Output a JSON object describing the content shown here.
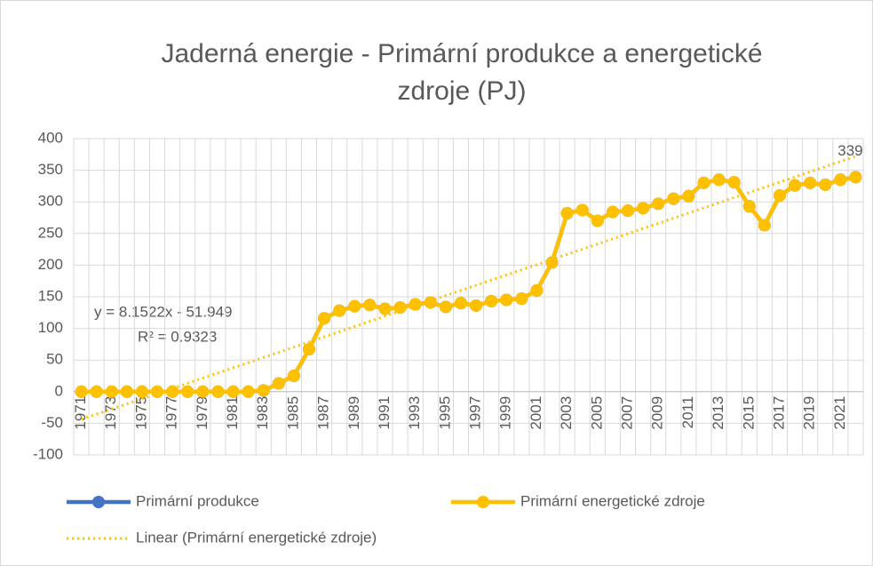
{
  "chart_data": {
    "type": "line",
    "title": [
      "Jaderná energie - Primární produkce a energetické",
      "zdroje (PJ)"
    ],
    "categories": [
      "1971",
      null,
      "1973",
      null,
      "1975",
      null,
      "1977",
      null,
      "1979",
      null,
      "1981",
      null,
      "1983",
      null,
      "1985",
      null,
      "1987",
      null,
      "1989",
      null,
      "1991",
      null,
      "1993",
      null,
      "1995",
      null,
      "1997",
      null,
      "1999",
      null,
      "2001",
      null,
      "2003",
      null,
      "2005",
      null,
      "2007",
      null,
      "2009",
      null,
      "2011",
      null,
      "2013",
      null,
      "2015",
      null,
      "2017",
      null,
      "2019",
      null,
      "2021",
      null
    ],
    "series": [
      {
        "name": "Primární produkce",
        "color": "#4472C4",
        "values": [
          0,
          0,
          0,
          0,
          0,
          0,
          0,
          0,
          0,
          0,
          0,
          0,
          2,
          13,
          25,
          67,
          116,
          128,
          135,
          137,
          131,
          133,
          138,
          141,
          134,
          140,
          136,
          143,
          145,
          147,
          160,
          204,
          282,
          287,
          270,
          284,
          286,
          290,
          297,
          305,
          309,
          330,
          335,
          331,
          293,
          263,
          310,
          326,
          330,
          327,
          335,
          339
        ]
      },
      {
        "name": "Primární energetické zdroje",
        "color": "#FFC000",
        "values": [
          0,
          0,
          0,
          0,
          0,
          0,
          0,
          0,
          0,
          0,
          0,
          0,
          2,
          13,
          25,
          67,
          116,
          128,
          135,
          137,
          131,
          133,
          138,
          141,
          134,
          140,
          136,
          143,
          145,
          147,
          160,
          204,
          282,
          287,
          270,
          284,
          286,
          290,
          297,
          305,
          309,
          330,
          335,
          331,
          293,
          263,
          310,
          326,
          330,
          327,
          335,
          339
        ]
      }
    ],
    "trendline": {
      "name": "Linear (Primární energetické zdroje)",
      "color": "#FFC000",
      "equation": "y = 8.1522x - 51.949",
      "r2": "R² = 0.9323",
      "slope": 8.1522,
      "intercept": -51.949
    },
    "ylim": [
      -100,
      400
    ],
    "yticks": [
      -100,
      -50,
      0,
      50,
      100,
      150,
      200,
      250,
      300,
      350,
      400
    ],
    "grid": true
  }
}
